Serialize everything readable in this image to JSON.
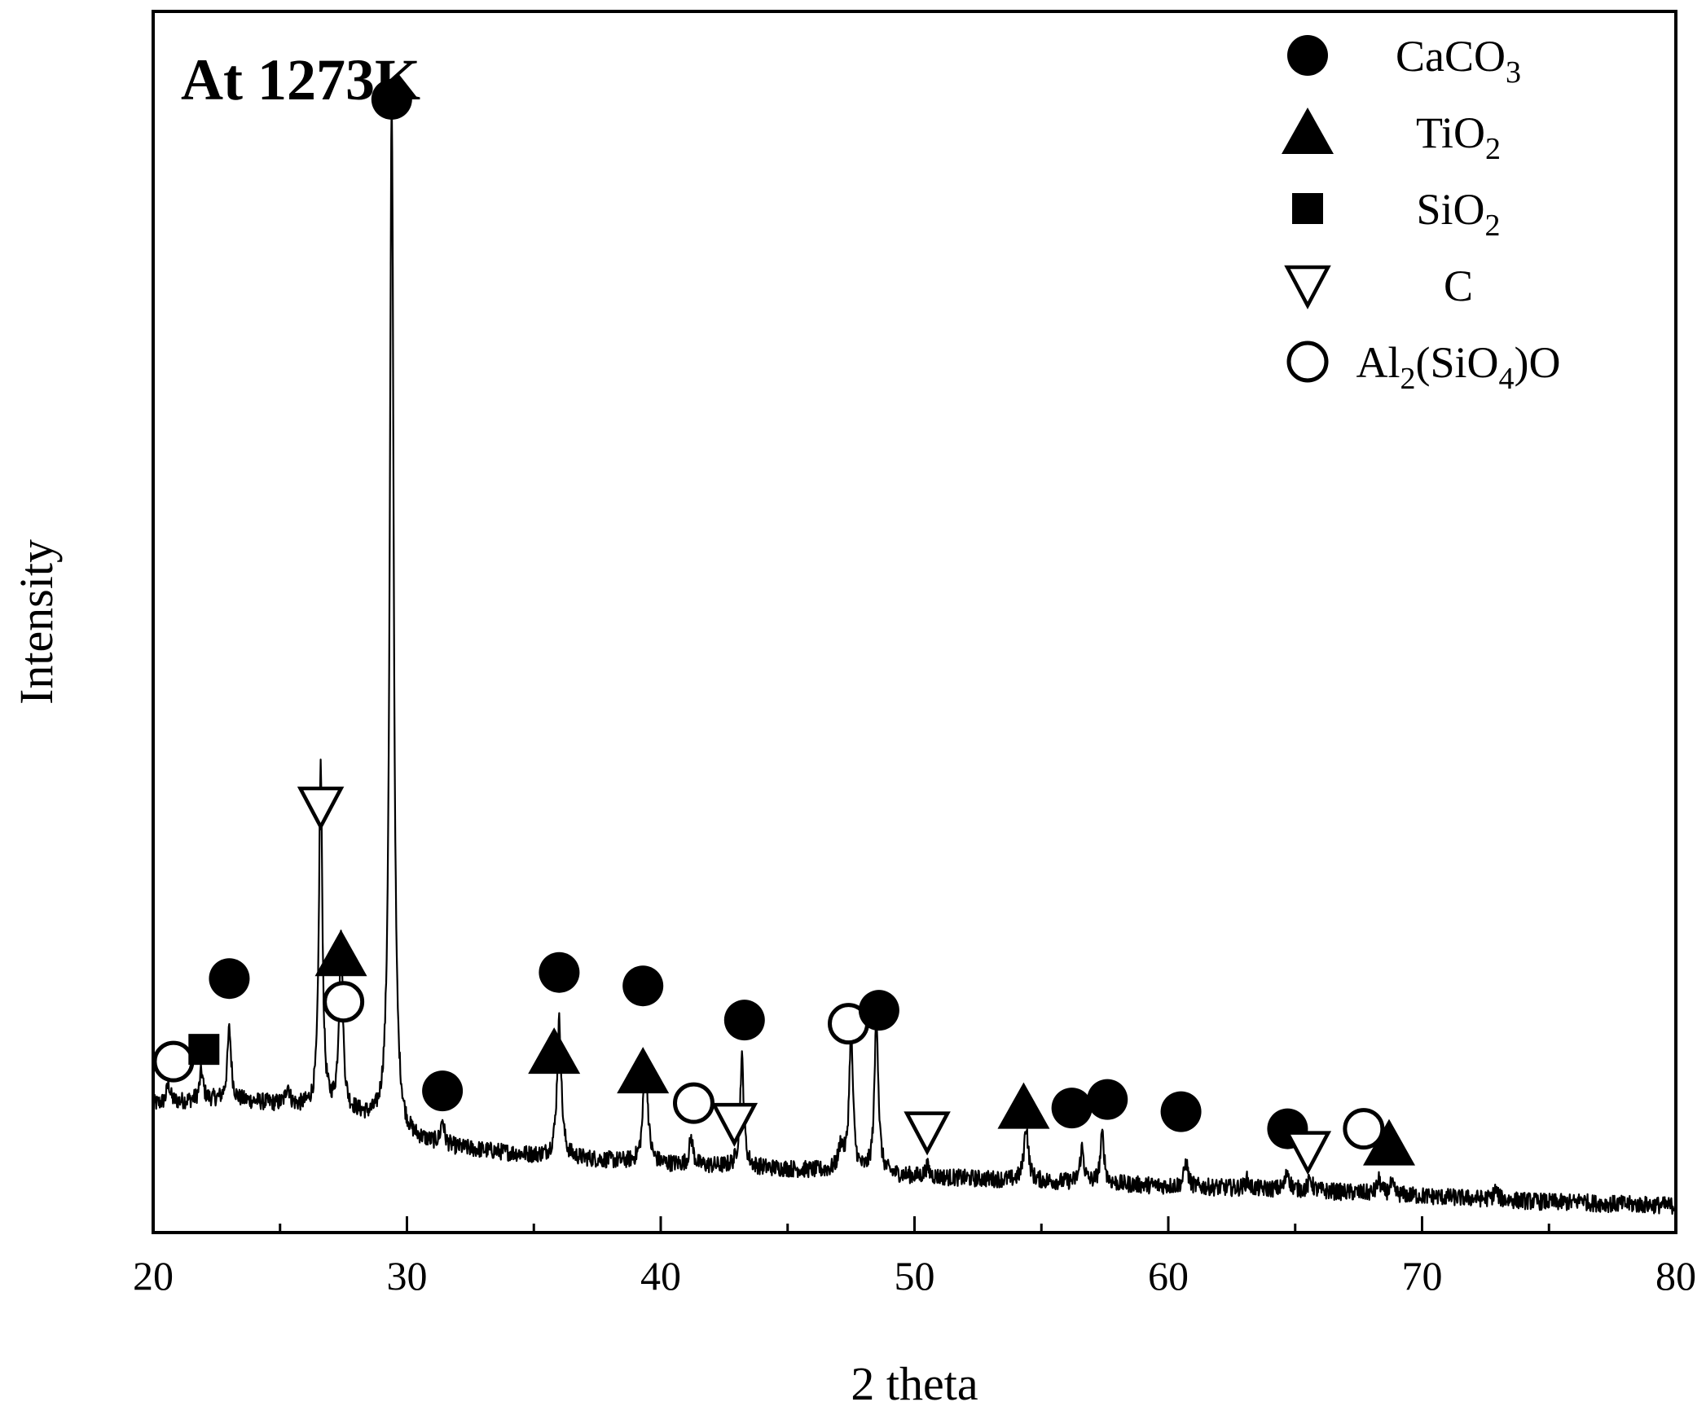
{
  "chart_data": {
    "type": "line",
    "title": "At 1273K",
    "xlabel": "2 theta",
    "ylabel": "Intensity",
    "xlim": [
      20,
      80
    ],
    "ylim": [
      0,
      100
    ],
    "x_ticks": [
      20,
      30,
      40,
      50,
      60,
      70,
      80
    ],
    "y_tick_labels_shown": false,
    "grid": false,
    "legend_position": "top-right",
    "legend": [
      {
        "marker": "filled-circle",
        "base": "CaCO",
        "sub": "3",
        "tail": ""
      },
      {
        "marker": "filled-triangle",
        "base": "TiO",
        "sub": "2",
        "tail": ""
      },
      {
        "marker": "filled-square",
        "base": "SiO",
        "sub": "2",
        "tail": ""
      },
      {
        "marker": "open-down-triangle",
        "base": "C",
        "sub": "",
        "tail": ""
      },
      {
        "marker": "open-circle",
        "base": "Al",
        "sub": "2",
        "tail": "(SiO",
        "sub2": "4",
        "tail2": ")O"
      }
    ],
    "series": [
      {
        "baseline": [
          [
            20,
            10.5
          ],
          [
            22,
            10.9
          ],
          [
            24,
            10.7
          ],
          [
            26,
            10.2
          ],
          [
            28,
            9.6
          ],
          [
            30,
            7.6
          ],
          [
            32,
            6.9
          ],
          [
            35,
            6.3
          ],
          [
            40,
            5.6
          ],
          [
            45,
            5.2
          ],
          [
            50,
            4.6
          ],
          [
            55,
            4.2
          ],
          [
            60,
            3.8
          ],
          [
            65,
            3.5
          ],
          [
            70,
            3.0
          ],
          [
            75,
            2.5
          ],
          [
            80,
            2.2
          ]
        ],
        "peaks": [
          {
            "x": 20.6,
            "h": 1.6,
            "w": 0.08
          },
          {
            "x": 21.9,
            "h": 2.3,
            "w": 0.08
          },
          {
            "x": 23.0,
            "h": 5.8,
            "w": 0.09
          },
          {
            "x": 25.3,
            "h": 1.6,
            "w": 0.09
          },
          {
            "x": 26.6,
            "h": 28.2,
            "w": 0.08
          },
          {
            "x": 27.4,
            "h": 14.0,
            "w": 0.09
          },
          {
            "x": 29.4,
            "h": 84.5,
            "w": 0.09
          },
          {
            "x": 31.4,
            "h": 2.0,
            "w": 0.08
          },
          {
            "x": 36.0,
            "h": 11.2,
            "w": 0.1
          },
          {
            "x": 39.4,
            "h": 9.3,
            "w": 0.1
          },
          {
            "x": 41.2,
            "h": 2.2,
            "w": 0.09
          },
          {
            "x": 43.2,
            "h": 8.9,
            "w": 0.09
          },
          {
            "x": 47.1,
            "h": 2.0,
            "w": 0.12
          },
          {
            "x": 47.5,
            "h": 11.5,
            "w": 0.09
          },
          {
            "x": 48.5,
            "h": 13.0,
            "w": 0.09
          },
          {
            "x": 50.5,
            "h": 0.8,
            "w": 0.09
          },
          {
            "x": 54.4,
            "h": 4.5,
            "w": 0.1
          },
          {
            "x": 56.6,
            "h": 2.8,
            "w": 0.09
          },
          {
            "x": 57.4,
            "h": 4.0,
            "w": 0.09
          },
          {
            "x": 60.7,
            "h": 2.0,
            "w": 0.09
          },
          {
            "x": 63.1,
            "h": 0.7,
            "w": 0.09
          },
          {
            "x": 64.7,
            "h": 1.5,
            "w": 0.09
          },
          {
            "x": 65.6,
            "h": 0.9,
            "w": 0.09
          },
          {
            "x": 68.3,
            "h": 1.1,
            "w": 0.09
          },
          {
            "x": 68.8,
            "h": 0.8,
            "w": 0.09
          },
          {
            "x": 72.9,
            "h": 0.8,
            "w": 0.09
          },
          {
            "x": 76.3,
            "h": 0.4,
            "w": 0.09
          }
        ]
      }
    ],
    "peak_markers": [
      {
        "x": 20.8,
        "y": 14.0,
        "marker": "open-circle"
      },
      {
        "x": 22.0,
        "y": 15.0,
        "marker": "filled-square"
      },
      {
        "x": 23.0,
        "y": 20.8,
        "marker": "filled-circle"
      },
      {
        "x": 26.6,
        "y": 34.9,
        "marker": "open-down-triangle"
      },
      {
        "x": 27.4,
        "y": 22.8,
        "marker": "filled-triangle"
      },
      {
        "x": 27.5,
        "y": 18.9,
        "marker": "open-circle"
      },
      {
        "x": 29.4,
        "y": 92.8,
        "marker": "filled-circle"
      },
      {
        "x": 31.4,
        "y": 11.6,
        "marker": "filled-circle"
      },
      {
        "x": 35.8,
        "y": 14.8,
        "marker": "filled-triangle"
      },
      {
        "x": 36.0,
        "y": 21.3,
        "marker": "filled-circle"
      },
      {
        "x": 39.3,
        "y": 13.2,
        "marker": "filled-triangle"
      },
      {
        "x": 39.3,
        "y": 20.2,
        "marker": "filled-circle"
      },
      {
        "x": 41.3,
        "y": 10.6,
        "marker": "open-circle"
      },
      {
        "x": 42.9,
        "y": 9.0,
        "marker": "open-down-triangle"
      },
      {
        "x": 43.3,
        "y": 17.4,
        "marker": "filled-circle"
      },
      {
        "x": 47.4,
        "y": 17.1,
        "marker": "open-circle"
      },
      {
        "x": 48.6,
        "y": 18.2,
        "marker": "filled-circle"
      },
      {
        "x": 50.5,
        "y": 8.3,
        "marker": "open-down-triangle"
      },
      {
        "x": 54.3,
        "y": 10.3,
        "marker": "filled-triangle"
      },
      {
        "x": 56.2,
        "y": 10.2,
        "marker": "filled-circle"
      },
      {
        "x": 57.6,
        "y": 10.9,
        "marker": "filled-circle"
      },
      {
        "x": 60.5,
        "y": 9.9,
        "marker": "filled-circle"
      },
      {
        "x": 64.7,
        "y": 8.5,
        "marker": "filled-circle"
      },
      {
        "x": 65.5,
        "y": 6.7,
        "marker": "open-down-triangle"
      },
      {
        "x": 67.7,
        "y": 8.5,
        "marker": "open-circle"
      },
      {
        "x": 68.7,
        "y": 7.3,
        "marker": "filled-triangle"
      }
    ]
  }
}
